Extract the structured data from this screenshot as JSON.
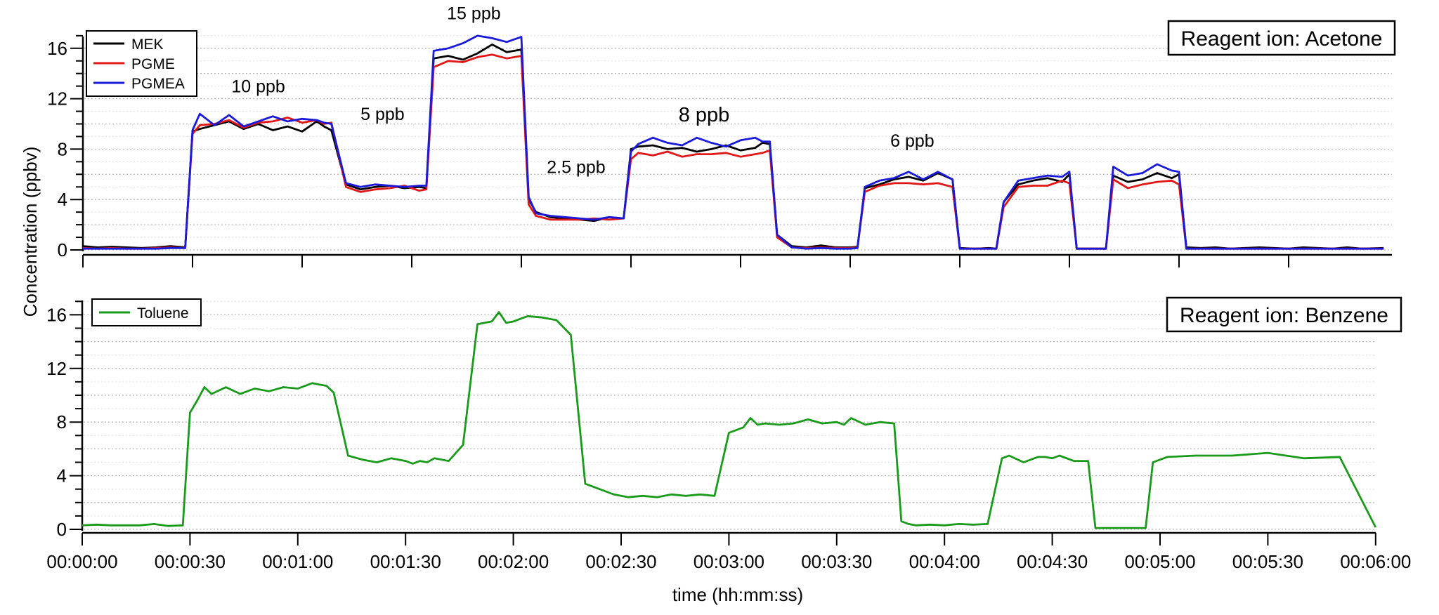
{
  "chart_data": [
    {
      "type": "line",
      "panel": "top",
      "title": "Reagent ion: Acetone",
      "xlabel": "",
      "ylabel": "Concentration (ppbv)",
      "x_unit": "seconds",
      "xlim": [
        0,
        356
      ],
      "ylim": [
        0,
        17
      ],
      "yticks": [
        0,
        4,
        8,
        12,
        16
      ],
      "xticks": [
        "00:00:00",
        "00:00:30",
        "00:01:00",
        "00:01:30",
        "00:02:00",
        "00:02:30",
        "00:03:00",
        "00:03:30",
        "00:04:00",
        "00:04:30",
        "00:05:00",
        "00:05:30"
      ],
      "grid": true,
      "legend_position": "upper left",
      "legend": [
        "MEK",
        "PGME",
        "PGMEA"
      ],
      "annotations": [
        {
          "text": "10 ppb",
          "t": 48,
          "y": 12.5
        },
        {
          "text": "5 ppb",
          "t": 82,
          "y": 10.3
        },
        {
          "text": "15 ppb",
          "t": 107,
          "y": 18.3
        },
        {
          "text": "2.5 ppb",
          "t": 135,
          "y": 6.1
        },
        {
          "text": "8 ppb",
          "t": 170,
          "y": 10.2,
          "big": true
        },
        {
          "text": "6 ppb",
          "t": 227,
          "y": 8.2
        }
      ],
      "x": [
        0,
        4,
        8,
        12,
        16,
        20,
        24,
        28,
        30,
        32,
        36,
        40,
        44,
        48,
        52,
        56,
        60,
        64,
        66,
        68,
        72,
        76,
        80,
        84,
        88,
        92,
        94,
        96,
        100,
        104,
        108,
        112,
        116,
        120,
        122,
        124,
        128,
        132,
        136,
        140,
        144,
        148,
        150,
        152,
        156,
        160,
        164,
        168,
        172,
        176,
        180,
        184,
        186,
        188,
        190,
        194,
        198,
        202,
        206,
        210,
        212,
        214,
        218,
        222,
        226,
        230,
        234,
        238,
        240,
        244,
        248,
        250,
        252,
        256,
        260,
        264,
        268,
        270,
        272,
        276,
        280,
        282,
        286,
        290,
        294,
        298,
        300,
        302,
        306,
        310,
        314,
        318,
        322,
        326,
        330,
        334,
        338,
        342,
        346,
        350,
        356
      ],
      "series": [
        {
          "name": "MEK",
          "color": "#000000",
          "values": [
            0.3,
            0.2,
            0.25,
            0.2,
            0.15,
            0.2,
            0.3,
            0.2,
            9.4,
            9.6,
            9.9,
            10.2,
            9.6,
            10.0,
            9.5,
            9.8,
            9.4,
            10.2,
            9.8,
            9.5,
            5.2,
            4.8,
            5.0,
            5.1,
            4.9,
            5.0,
            4.9,
            15.2,
            15.4,
            15.1,
            15.6,
            16.3,
            15.7,
            15.9,
            4.0,
            3.0,
            2.6,
            2.5,
            2.4,
            2.3,
            2.6,
            2.5,
            8.0,
            8.2,
            8.3,
            8.0,
            8.1,
            7.8,
            8.0,
            8.3,
            7.9,
            8.1,
            8.5,
            8.4,
            1.2,
            0.3,
            0.2,
            0.35,
            0.2,
            0.2,
            0.25,
            4.9,
            5.2,
            5.6,
            5.8,
            5.5,
            6.1,
            5.6,
            0.15,
            0.1,
            0.15,
            0.1,
            3.8,
            5.2,
            5.5,
            5.7,
            5.4,
            6.0,
            0.1,
            0.1,
            0.1,
            5.9,
            5.4,
            5.6,
            6.1,
            5.7,
            6.0,
            0.2,
            0.15,
            0.2,
            0.1,
            0.15,
            0.2,
            0.15,
            0.1,
            0.2,
            0.15,
            0.1,
            0.2,
            0.1,
            0.15
          ]
        },
        {
          "name": "PGME",
          "color": "#e01818",
          "values": [
            0.15,
            0.1,
            0.15,
            0.1,
            0.1,
            0.15,
            0.2,
            0.15,
            9.2,
            9.9,
            10.0,
            10.3,
            9.7,
            10.1,
            10.2,
            10.5,
            10.1,
            10.3,
            10.0,
            10.1,
            5.0,
            4.6,
            4.8,
            4.9,
            5.1,
            4.7,
            4.8,
            14.5,
            15.0,
            14.9,
            15.3,
            15.5,
            15.2,
            15.4,
            3.6,
            2.7,
            2.4,
            2.4,
            2.4,
            2.5,
            2.4,
            2.5,
            7.2,
            7.7,
            7.5,
            7.8,
            7.4,
            7.6,
            7.6,
            7.7,
            7.4,
            7.6,
            7.7,
            7.9,
            1.0,
            0.2,
            0.15,
            0.2,
            0.15,
            0.15,
            0.2,
            4.6,
            5.1,
            5.3,
            5.3,
            5.2,
            5.3,
            5.0,
            0.1,
            0.1,
            0.1,
            0.1,
            3.4,
            5.0,
            5.1,
            5.1,
            5.5,
            5.3,
            0.1,
            0.1,
            0.1,
            5.6,
            4.9,
            5.2,
            5.4,
            5.5,
            5.2,
            0.1,
            0.1,
            0.1,
            0.1,
            0.1,
            0.1,
            0.1,
            0.1,
            0.1,
            0.1,
            0.1,
            0.1,
            0.1,
            0.1
          ]
        },
        {
          "name": "PGMEA",
          "color": "#1a1ad8",
          "values": [
            0.1,
            0.1,
            0.1,
            0.1,
            0.1,
            0.1,
            0.15,
            0.15,
            9.5,
            10.8,
            9.9,
            10.7,
            9.8,
            10.2,
            10.6,
            10.2,
            10.4,
            10.3,
            10.1,
            10.0,
            5.3,
            5.0,
            5.2,
            5.1,
            5.0,
            5.1,
            5.1,
            15.8,
            16.0,
            16.4,
            17.0,
            16.8,
            16.5,
            16.9,
            4.2,
            2.9,
            2.7,
            2.6,
            2.5,
            2.4,
            2.6,
            2.5,
            7.8,
            8.4,
            8.9,
            8.5,
            8.3,
            8.9,
            8.5,
            8.2,
            8.7,
            8.9,
            8.6,
            8.6,
            1.2,
            0.2,
            0.1,
            0.15,
            0.1,
            0.1,
            0.15,
            5.0,
            5.5,
            5.7,
            6.2,
            5.6,
            6.2,
            5.6,
            0.1,
            0.1,
            0.1,
            0.1,
            3.8,
            5.5,
            5.7,
            5.9,
            5.8,
            6.2,
            0.1,
            0.1,
            0.1,
            6.6,
            5.9,
            6.1,
            6.8,
            6.3,
            6.2,
            0.1,
            0.1,
            0.1,
            0.1,
            0.1,
            0.1,
            0.1,
            0.1,
            0.1,
            0.1,
            0.1,
            0.1,
            0.1,
            0.1
          ]
        }
      ]
    },
    {
      "type": "line",
      "panel": "bottom",
      "title": "Reagent ion: Benzene",
      "xlabel": "time (hh:mm:ss)",
      "ylabel": "Concentration (ppbv)",
      "x_unit": "seconds",
      "xlim": [
        0,
        360
      ],
      "ylim": [
        0,
        17
      ],
      "yticks": [
        0,
        4,
        8,
        12,
        16
      ],
      "xticks": [
        "00:00:00",
        "00:00:30",
        "00:01:00",
        "00:01:30",
        "00:02:00",
        "00:02:30",
        "00:03:00",
        "00:03:30",
        "00:04:00",
        "00:04:30",
        "00:05:00",
        "00:05:30",
        "00:06:00"
      ],
      "grid": true,
      "legend_position": "upper left",
      "legend": [
        "Toluene"
      ],
      "x": [
        0,
        4,
        8,
        12,
        16,
        20,
        24,
        28,
        30,
        32,
        34,
        36,
        40,
        44,
        48,
        52,
        56,
        60,
        64,
        66,
        68,
        70,
        74,
        78,
        82,
        86,
        90,
        92,
        94,
        96,
        98,
        102,
        106,
        110,
        114,
        116,
        118,
        120,
        122,
        124,
        128,
        132,
        136,
        140,
        144,
        146,
        148,
        152,
        156,
        160,
        164,
        168,
        172,
        176,
        180,
        184,
        186,
        188,
        190,
        194,
        198,
        202,
        206,
        210,
        212,
        214,
        218,
        222,
        226,
        228,
        230,
        232,
        236,
        240,
        242,
        244,
        248,
        252,
        256,
        258,
        262,
        266,
        268,
        270,
        272,
        276,
        280,
        282,
        286,
        290,
        294,
        296,
        298,
        302,
        310,
        320,
        330,
        340,
        350,
        360
      ],
      "series": [
        {
          "name": "Toluene",
          "color": "#1a9a1a",
          "values": [
            0.3,
            0.35,
            0.3,
            0.3,
            0.3,
            0.4,
            0.25,
            0.3,
            8.7,
            9.6,
            10.6,
            10.1,
            10.6,
            10.1,
            10.5,
            10.3,
            10.6,
            10.5,
            10.9,
            10.8,
            10.7,
            10.2,
            5.5,
            5.2,
            5.0,
            5.3,
            5.1,
            4.9,
            5.1,
            5.0,
            5.3,
            5.1,
            6.3,
            15.3,
            15.5,
            16.2,
            15.4,
            15.5,
            15.7,
            15.9,
            15.8,
            15.6,
            14.5,
            3.4,
            3.0,
            2.8,
            2.6,
            2.4,
            2.5,
            2.4,
            2.6,
            2.5,
            2.6,
            2.5,
            7.2,
            7.6,
            8.3,
            7.8,
            7.9,
            7.8,
            7.9,
            8.2,
            7.9,
            8.0,
            7.8,
            8.3,
            7.8,
            8.0,
            7.9,
            0.6,
            0.4,
            0.3,
            0.35,
            0.3,
            0.35,
            0.4,
            0.35,
            0.4,
            5.3,
            5.5,
            5.0,
            5.4,
            5.4,
            5.3,
            5.5,
            5.1,
            5.1,
            0.1,
            0.1,
            0.1,
            0.1,
            0.1,
            5.0,
            5.4,
            5.5,
            5.5,
            5.7,
            5.3,
            5.4,
            0.15
          ]
        }
      ]
    }
  ],
  "figure": {
    "y_axis_title": "Concentration (ppbv)",
    "x_axis_title": "time (hh:mm:ss)"
  }
}
